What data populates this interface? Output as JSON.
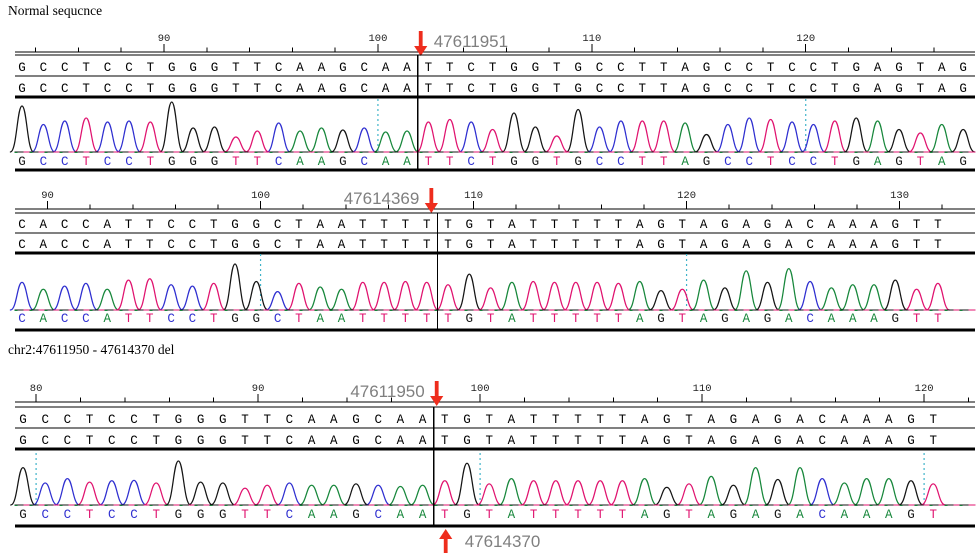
{
  "figure": {
    "panel1_title": "Normal sequcnce",
    "panel3_title": "chr2:47611950 - 47614370 del"
  },
  "colors": {
    "A": "#17873b",
    "C": "#2f2fd0",
    "G": "#151515",
    "T": "#e0136f",
    "divider": "#000000",
    "dotted_line": "#3fb3c9",
    "arrow_red": "#ee2d1d",
    "marker_text": "#7f7f7f",
    "ruler_text": "#222222"
  },
  "chart_data": [
    {
      "type": "chromatogram",
      "name": "normal-sequence-trace-1",
      "title": "Normal sequcnce",
      "seq_before": "GCCTCCTGGGTTCAAGCAA",
      "seq_after": "TTCTGGTGCCTTAGCCTCCTGAGTAG",
      "ruler_labels": [
        90,
        100,
        110,
        120
      ],
      "dotted_ruler_values": [
        100,
        120
      ],
      "marker": {
        "value": "47611951",
        "arrow": "down",
        "text_side": "right"
      },
      "peak_heights_before": [
        0.92,
        0.55,
        0.62,
        0.68,
        0.6,
        0.62,
        0.6,
        1,
        0.48,
        0.5,
        0.3,
        0.42,
        0.58,
        0.42,
        0.48,
        0.44,
        0.48,
        0.4,
        0.42
      ],
      "peak_heights_after": [
        0.6,
        0.65,
        0.6,
        0.45,
        0.78,
        0.5,
        0.32,
        0.85,
        0.5,
        0.62,
        0.62,
        0.62,
        0.58,
        0.35,
        0.55,
        0.68,
        0.65,
        0.6,
        0.55,
        0.62,
        0.68,
        0.62,
        0.45,
        0.38,
        0.55,
        0.45
      ]
    },
    {
      "type": "chromatogram",
      "name": "normal-sequence-trace-2",
      "title": "",
      "seq_before": "CACCATTCCTGGCTAATTTT",
      "seq_after": "TGTATTTTTAGTAGAGACAAAGTT",
      "ruler_labels": [
        90,
        100,
        110,
        120,
        130
      ],
      "dotted_ruler_values": [
        100,
        120
      ],
      "marker": {
        "value": "47614369",
        "arrow": "down",
        "text_side": "left"
      },
      "peak_heights_before": [
        0.6,
        0.45,
        0.52,
        0.58,
        0.45,
        0.65,
        0.68,
        0.55,
        0.52,
        0.58,
        1,
        0.62,
        0.4,
        0.58,
        0.5,
        0.45,
        0.6,
        0.6,
        0.62,
        0.6
      ],
      "peak_heights_after": [
        0.55,
        0.78,
        0.48,
        0.6,
        0.62,
        0.6,
        0.6,
        0.6,
        0.58,
        0.62,
        0.42,
        0.45,
        0.65,
        0.48,
        0.85,
        0.6,
        0.9,
        0.62,
        0.48,
        0.55,
        0.55,
        0.65,
        0.45,
        0.58
      ]
    },
    {
      "type": "chromatogram",
      "name": "deletion-junction-trace",
      "title": "chr2:47611950 - 47614370 del",
      "seq_before": "GCCTCCTGGGTTCAAGCAA",
      "seq_after": "TGTATTTTTAGTAGAGACAAAGT",
      "ruler_labels": [
        80,
        90,
        100,
        110,
        120
      ],
      "dotted_ruler_values": [
        80,
        100,
        120
      ],
      "marker": {
        "value": "47611950",
        "arrow": "down",
        "text_side": "left"
      },
      "bottom_marker": {
        "value": "47614370",
        "arrow": "up",
        "text_side": "right"
      },
      "peak_heights_before": [
        0.85,
        0.5,
        0.6,
        0.52,
        0.55,
        0.56,
        0.5,
        1,
        0.52,
        0.5,
        0.38,
        0.45,
        0.5,
        0.45,
        0.45,
        0.48,
        0.45,
        0.42,
        0.45
      ],
      "peak_heights_after": [
        0.55,
        0.95,
        0.48,
        0.6,
        0.55,
        0.55,
        0.55,
        0.55,
        0.55,
        0.6,
        0.4,
        0.48,
        0.65,
        0.45,
        0.85,
        0.58,
        0.85,
        0.6,
        0.5,
        0.6,
        0.6,
        0.55,
        0.48
      ]
    }
  ]
}
